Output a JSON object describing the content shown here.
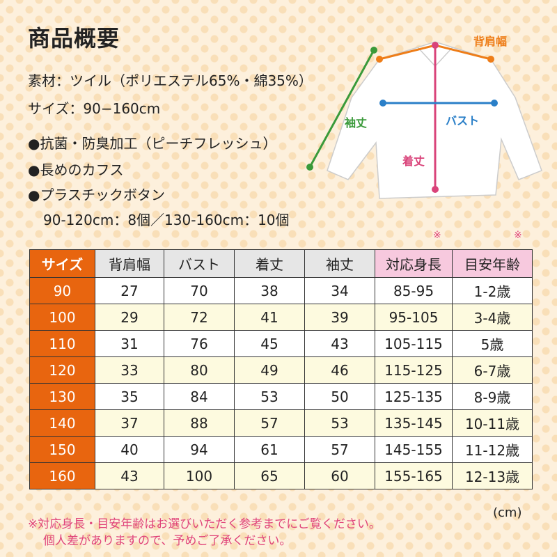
{
  "header": {
    "title": "商品概要"
  },
  "specs": [
    "素材：ツイル（ポリエステル65%・綿35%）",
    "サイズ：90−160cm"
  ],
  "features": [
    "●抗菌・防臭加工（ピーチフレッシュ）",
    "●長めのカフス",
    "●プラスチックボタン"
  ],
  "feature_detail": "90-120cm：8個／130-160cm：10個",
  "diagram": {
    "shoulder": "背肩幅",
    "sleeve": "袖丈",
    "bust": "バスト",
    "length": "着丈"
  },
  "table": {
    "header": [
      "サイズ",
      "背肩幅",
      "バスト",
      "着丈",
      "袖丈",
      "対応身長",
      "目安年齢"
    ],
    "marks": [
      "※",
      "※"
    ],
    "rows": [
      [
        "90",
        "27",
        "70",
        "38",
        "34",
        "85-95",
        "1-2歳"
      ],
      [
        "100",
        "29",
        "72",
        "41",
        "39",
        "95-105",
        "3-4歳"
      ],
      [
        "110",
        "31",
        "76",
        "45",
        "43",
        "105-115",
        "5歳"
      ],
      [
        "120",
        "33",
        "80",
        "49",
        "46",
        "115-125",
        "6-7歳"
      ],
      [
        "130",
        "35",
        "84",
        "53",
        "50",
        "125-135",
        "8-9歳"
      ],
      [
        "140",
        "37",
        "88",
        "57",
        "53",
        "135-145",
        "10-11歳"
      ],
      [
        "150",
        "40",
        "94",
        "61",
        "57",
        "145-155",
        "11-12歳"
      ],
      [
        "160",
        "43",
        "100",
        "65",
        "60",
        "155-165",
        "12-13歳"
      ]
    ],
    "unit": "(cm)"
  },
  "notes": [
    "※対応身長・目安年齢はお選びいただく参考までにご覧ください。",
    "個人差がありますので、予めご了承ください。"
  ]
}
